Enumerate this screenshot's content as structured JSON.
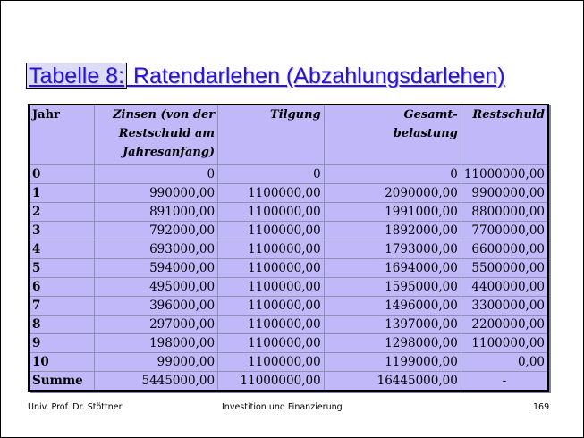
{
  "title": {
    "label": "Tabelle 8:",
    "text": " Ratendarlehen (Abzahlungsdarlehen)"
  },
  "table": {
    "headers": [
      "Jahr",
      "Zinsen (von der Restschuld am Jahresanfang)",
      "Tilgung",
      "Gesamt- belastung",
      "Restschuld"
    ],
    "rows": [
      [
        "0",
        "0",
        "0",
        "0",
        "11000000,00"
      ],
      [
        "1",
        "990000,00",
        "1100000,00",
        "2090000,00",
        "9900000,00"
      ],
      [
        "2",
        "891000,00",
        "1100000,00",
        "1991000,00",
        "8800000,00"
      ],
      [
        "3",
        "792000,00",
        "1100000,00",
        "1892000,00",
        "7700000,00"
      ],
      [
        "4",
        "693000,00",
        "1100000,00",
        "1793000,00",
        "6600000,00"
      ],
      [
        "5",
        "594000,00",
        "1100000,00",
        "1694000,00",
        "5500000,00"
      ],
      [
        "6",
        "495000,00",
        "1100000,00",
        "1595000,00",
        "4400000,00"
      ],
      [
        "7",
        "396000,00",
        "1100000,00",
        "1496000,00",
        "3300000,00"
      ],
      [
        "8",
        "297000,00",
        "1100000,00",
        "1397000,00",
        "2200000,00"
      ],
      [
        "9",
        "198000,00",
        "1100000,00",
        "1298000,00",
        "1100000,00"
      ],
      [
        "10",
        "99000,00",
        "1100000,00",
        "1199000,00",
        "0,00"
      ],
      [
        "Summe",
        "5445000,00",
        "11000000,00",
        "16445000,00",
        "-"
      ]
    ]
  },
  "footer": {
    "author": "Univ. Prof. Dr. Stöttner",
    "course": "Investition und Finanzierung",
    "page": "169"
  },
  "colors": {
    "title": "#2a12d8",
    "table_bg": "#c0b8f8"
  }
}
